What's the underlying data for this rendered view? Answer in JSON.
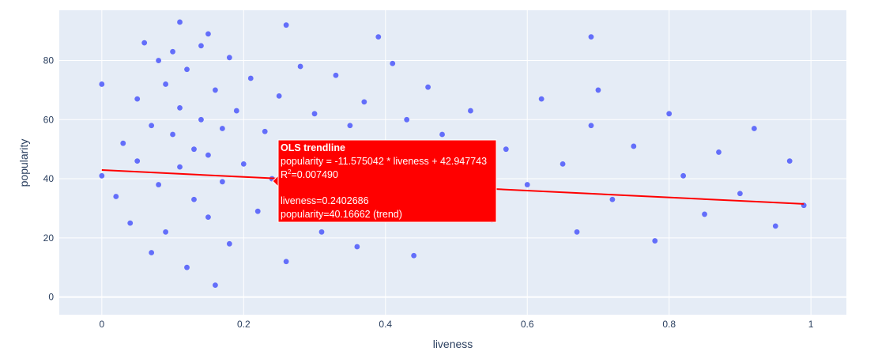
{
  "chart_data": {
    "type": "scatter",
    "xlabel": "liveness",
    "ylabel": "popularity",
    "xlim": [
      -0.06,
      1.05
    ],
    "ylim": [
      -6,
      97
    ],
    "xticks": [
      0,
      0.2,
      0.4,
      0.6,
      0.8,
      1
    ],
    "xtick_labels": [
      "0",
      "0.2",
      "0.4",
      "0.6",
      "0.8",
      "1"
    ],
    "yticks": [
      0,
      20,
      40,
      60,
      80
    ],
    "ytick_labels": [
      "0",
      "20",
      "40",
      "60",
      "80"
    ],
    "grid": true,
    "legend": "none",
    "colors": {
      "points": "#636efa",
      "trendline": "#ff0000",
      "plot_bg": "#e5ecf6",
      "grid": "#ffffff"
    },
    "trendline": {
      "slope": -11.575042,
      "intercept": 42.947743,
      "x_range": [
        0,
        0.99
      ]
    },
    "series": [
      {
        "x": [
          0.0,
          0.0,
          0.02,
          0.03,
          0.04,
          0.05,
          0.05,
          0.06,
          0.07,
          0.07,
          0.08,
          0.08,
          0.09,
          0.09,
          0.1,
          0.1,
          0.11,
          0.11,
          0.12,
          0.12,
          0.13,
          0.13,
          0.14,
          0.14,
          0.15,
          0.15,
          0.16,
          0.16,
          0.17,
          0.17,
          0.18,
          0.18,
          0.19,
          0.2,
          0.21,
          0.22,
          0.23,
          0.24,
          0.25,
          0.26,
          0.27,
          0.28,
          0.29,
          0.3,
          0.31,
          0.32,
          0.33,
          0.34,
          0.35,
          0.36,
          0.37,
          0.38,
          0.39,
          0.4,
          0.41,
          0.42,
          0.43,
          0.44,
          0.45,
          0.46,
          0.47,
          0.48,
          0.5,
          0.52,
          0.55,
          0.57,
          0.6,
          0.62,
          0.65,
          0.67,
          0.69,
          0.7,
          0.72,
          0.75,
          0.78,
          0.8,
          0.82,
          0.85,
          0.87,
          0.9,
          0.92,
          0.95,
          0.97,
          0.99,
          0.11,
          0.15,
          0.26,
          0.39,
          0.69
        ],
        "y": [
          72,
          41,
          34,
          52,
          25,
          46,
          67,
          86,
          15,
          58,
          80,
          38,
          72,
          22,
          55,
          83,
          44,
          64,
          10,
          77,
          50,
          33,
          60,
          85,
          27,
          48,
          70,
          4,
          57,
          39,
          81,
          18,
          63,
          45,
          74,
          29,
          56,
          40,
          68,
          12,
          51,
          78,
          35,
          62,
          22,
          48,
          75,
          31,
          58,
          17,
          66,
          43,
          27,
          52,
          79,
          36,
          60,
          14,
          47,
          71,
          30,
          55,
          41,
          63,
          26,
          50,
          38,
          67,
          45,
          22,
          58,
          70,
          33,
          51,
          19,
          62,
          41,
          28,
          49,
          35,
          57,
          24,
          46,
          31,
          93,
          89,
          92,
          88,
          88
        ]
      }
    ],
    "hover": {
      "title": "OLS trendline",
      "equation": "popularity = -11.575042 * liveness + 42.947743",
      "r2_prefix": "R",
      "r2_sup": "2",
      "r2_value": "=0.007490",
      "x_line": "liveness=0.2402686",
      "y_line": "popularity=40.16662 (trend)",
      "anchor_x": 0.2402686,
      "anchor_y": 40.16662
    }
  }
}
